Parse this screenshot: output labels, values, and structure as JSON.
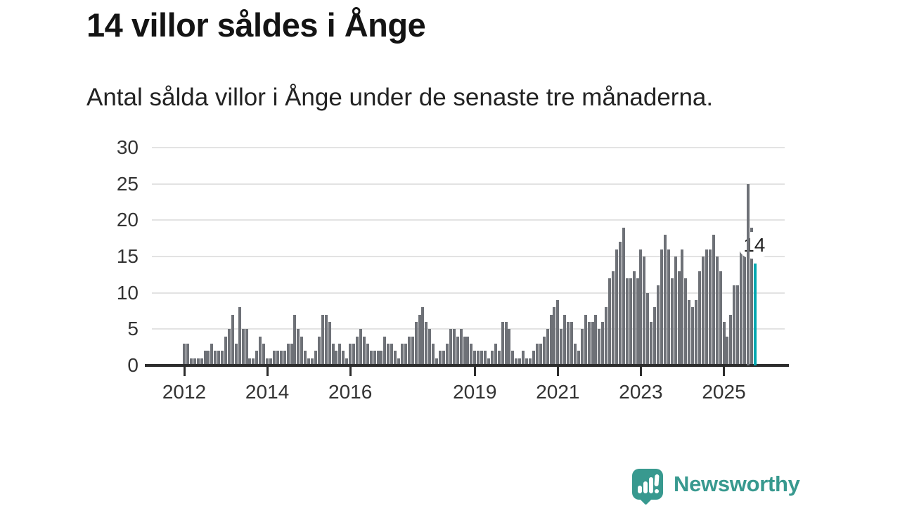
{
  "title": "14 villor såldes i Ånge",
  "subtitle": "Antal sålda villor i Ånge under de senaste tre månaderna.",
  "annotation": {
    "label": "14"
  },
  "logo": {
    "text": "Newsworthy",
    "icon": "speech-bubble-bar-chart-icon",
    "color": "#38998f"
  },
  "colors": {
    "bar": "#6e7177",
    "highlight": "#00a8b0",
    "grid": "#e3e3e3",
    "axis": "#2d2d2d",
    "tick_label": "#333333",
    "title_text": "#141414",
    "annotation_bg": "#ffffff",
    "annotation_text": "#222222"
  },
  "chart_data": {
    "type": "bar",
    "title": "14 villor såldes i Ånge",
    "subtitle": "Antal sålda villor i Ånge under de senaste tre månaderna.",
    "frequency": "monthly",
    "x_start": "2012-01",
    "x_end": "2025-10",
    "values": [
      3,
      3,
      1,
      1,
      1,
      1,
      2,
      2,
      3,
      2,
      2,
      2,
      4,
      5,
      7,
      3,
      8,
      5,
      5,
      1,
      1,
      2,
      4,
      3,
      1,
      1,
      2,
      2,
      2,
      2,
      3,
      3,
      7,
      5,
      4,
      2,
      1,
      1,
      2,
      4,
      7,
      7,
      6,
      3,
      2,
      3,
      2,
      1,
      3,
      3,
      4,
      5,
      4,
      3,
      2,
      2,
      2,
      2,
      4,
      3,
      3,
      2,
      1,
      3,
      3,
      4,
      4,
      6,
      7,
      8,
      6,
      5,
      3,
      1,
      2,
      2,
      3,
      5,
      5,
      4,
      5,
      4,
      4,
      3,
      2,
      2,
      2,
      2,
      1,
      2,
      3,
      2,
      6,
      6,
      5,
      2,
      1,
      1,
      2,
      1,
      1,
      2,
      3,
      3,
      4,
      5,
      7,
      8,
      9,
      5,
      7,
      6,
      6,
      3,
      2,
      5,
      7,
      6,
      6,
      7,
      5,
      6,
      8,
      12,
      13,
      16,
      17,
      19,
      12,
      12,
      13,
      12,
      16,
      15,
      10,
      6,
      8,
      11,
      16,
      18,
      16,
      12,
      15,
      13,
      16,
      12,
      9,
      8,
      9,
      13,
      15,
      16,
      16,
      18,
      15,
      13,
      6,
      4,
      7,
      11,
      11,
      17,
      18,
      25,
      19,
      14
    ],
    "highlight_index": 165,
    "annotation_label": "14",
    "ylim": [
      0,
      30
    ],
    "yticks": [
      0,
      5,
      10,
      15,
      20,
      25,
      30
    ],
    "xtick_years": [
      2012,
      2014,
      2016,
      2019,
      2021,
      2023,
      2025
    ],
    "grid": "horizontal",
    "legend": "none"
  }
}
